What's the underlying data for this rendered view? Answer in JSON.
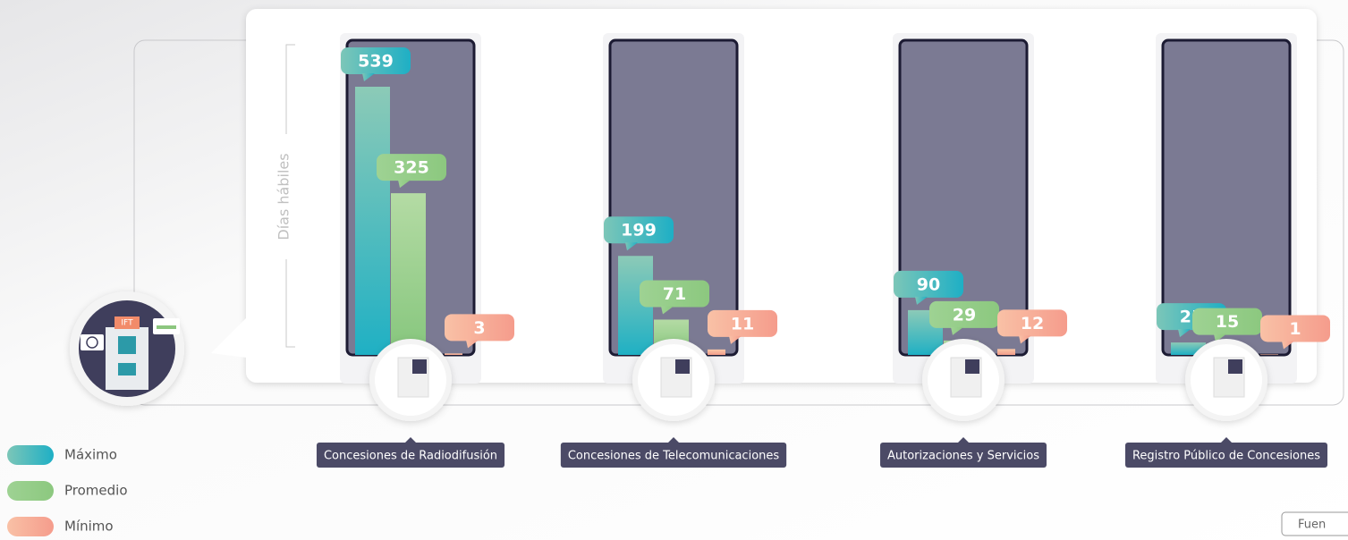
{
  "chart_data": {
    "type": "bar",
    "y_label": "Días hábiles",
    "categories": [
      "Concesiones de Radiodifusión",
      "Concesiones de Telecomunicaciones",
      "Autorizaciones y Servicios",
      "Registro Público de Concesiones"
    ],
    "series": [
      {
        "name": "Máximo",
        "color": "#29b5c3",
        "values": [
          539,
          199,
          90,
          25
        ]
      },
      {
        "name": "Promedio",
        "color": "#94cc86",
        "values": [
          325,
          71,
          29,
          15
        ]
      },
      {
        "name": "Mínimo",
        "color": "#f7ab92",
        "values": [
          3,
          11,
          12,
          1
        ]
      }
    ],
    "source_button": "Fuen"
  },
  "icon_label": "IFT"
}
